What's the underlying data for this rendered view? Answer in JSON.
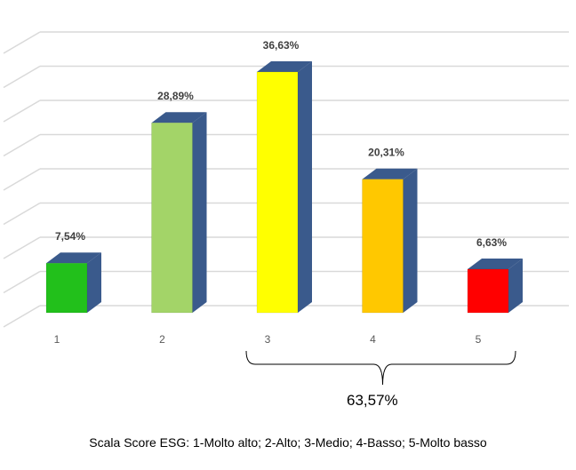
{
  "chart_data": {
    "type": "bar",
    "categories": [
      "1",
      "2",
      "3",
      "4",
      "5"
    ],
    "values": [
      7.54,
      28.89,
      36.63,
      20.31,
      6.63
    ],
    "data_labels": [
      "7,54%",
      "28,89%",
      "36,63%",
      "20,31%",
      "6,63%"
    ],
    "colors": [
      "#22c01b",
      "#a3d468",
      "#ffff00",
      "#ffc800",
      "#ff0000"
    ],
    "side_color": "#3a5a8c",
    "ylim": [
      0,
      40
    ],
    "grid": true,
    "style": "3d",
    "bracket": {
      "from_category": "3",
      "to_category": "5",
      "label": "63,57%"
    }
  },
  "caption": "Scala Score ESG: 1-Molto alto; 2-Alto; 3-Medio; 4-Basso; 5-Molto basso"
}
